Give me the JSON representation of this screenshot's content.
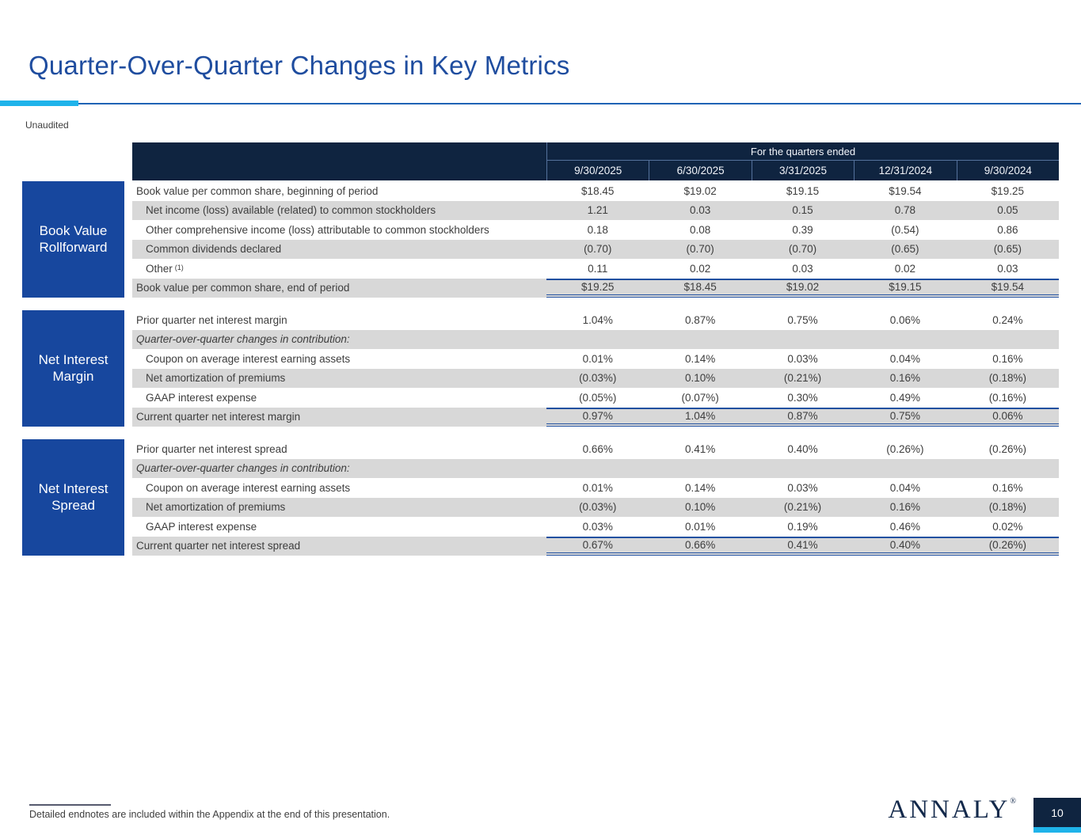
{
  "slide": {
    "title": "Quarter-Over-Quarter Changes in Key Metrics",
    "unaudited_label": "Unaudited",
    "footnote": "Detailed endnotes are included within the Appendix at the end of this presentation.",
    "brand": "ANNALY",
    "brand_mark": "®",
    "page_number": "10"
  },
  "colors": {
    "header_navy": "#0f2440",
    "section_blue": "#17479e",
    "accent_cyan": "#1fb3ea",
    "title_blue": "#1f4d9f",
    "striped_row_gray": "#d8d8d8",
    "total_rule_blue": "#2050a0"
  },
  "table": {
    "quarters_header": "For the quarters ended",
    "columns": [
      "9/30/2025",
      "6/30/2025",
      "3/31/2025",
      "12/31/2024",
      "9/30/2024"
    ],
    "sections": [
      {
        "label": "Book Value Rollforward",
        "rows": [
          {
            "label": "Book value per common share, beginning of period",
            "values": [
              "$18.45",
              "$19.02",
              "$19.15",
              "$19.54",
              "$19.25"
            ]
          },
          {
            "label": "Net income (loss) available (related) to common stockholders",
            "indent": true,
            "values": [
              "1.21",
              "0.03",
              "0.15",
              "0.78",
              "0.05"
            ]
          },
          {
            "label": "Other comprehensive income (loss) attributable to common stockholders",
            "indent": true,
            "values": [
              "0.18",
              "0.08",
              "0.39",
              "(0.54)",
              "0.86"
            ]
          },
          {
            "label": "Common dividends declared",
            "indent": true,
            "values": [
              "(0.70)",
              "(0.70)",
              "(0.70)",
              "(0.65)",
              "(0.65)"
            ]
          },
          {
            "label": "Other",
            "sup": "(1)",
            "indent": true,
            "values": [
              "0.11",
              "0.02",
              "0.03",
              "0.02",
              "0.03"
            ]
          },
          {
            "label": "Book value per common share, end of period",
            "total": true,
            "values": [
              "$19.25",
              "$18.45",
              "$19.02",
              "$19.15",
              "$19.54"
            ]
          }
        ]
      },
      {
        "label": "Net Interest Margin",
        "rows": [
          {
            "label": "Prior quarter net interest margin",
            "values": [
              "1.04%",
              "0.87%",
              "0.75%",
              "0.06%",
              "0.24%"
            ]
          },
          {
            "label": "Quarter-over-quarter changes in contribution:",
            "italic": true,
            "values": [
              "",
              "",
              "",
              "",
              ""
            ]
          },
          {
            "label": "Coupon on average interest earning assets",
            "indent": true,
            "values": [
              "0.01%",
              "0.14%",
              "0.03%",
              "0.04%",
              "0.16%"
            ]
          },
          {
            "label": "Net amortization of premiums",
            "indent": true,
            "values": [
              "(0.03%)",
              "0.10%",
              "(0.21%)",
              "0.16%",
              "(0.18%)"
            ]
          },
          {
            "label": "GAAP interest expense",
            "indent": true,
            "values": [
              "(0.05%)",
              "(0.07%)",
              "0.30%",
              "0.49%",
              "(0.16%)"
            ]
          },
          {
            "label": "Current quarter net interest margin",
            "total": true,
            "values": [
              "0.97%",
              "1.04%",
              "0.87%",
              "0.75%",
              "0.06%"
            ]
          }
        ]
      },
      {
        "label": "Net Interest Spread",
        "rows": [
          {
            "label": "Prior quarter net interest spread",
            "values": [
              "0.66%",
              "0.41%",
              "0.40%",
              "(0.26%)",
              "(0.26%)"
            ]
          },
          {
            "label": "Quarter-over-quarter changes in contribution:",
            "italic": true,
            "values": [
              "",
              "",
              "",
              "",
              ""
            ]
          },
          {
            "label": "Coupon on average interest earning assets",
            "indent": true,
            "values": [
              "0.01%",
              "0.14%",
              "0.03%",
              "0.04%",
              "0.16%"
            ]
          },
          {
            "label": "Net amortization of premiums",
            "indent": true,
            "values": [
              "(0.03%)",
              "0.10%",
              "(0.21%)",
              "0.16%",
              "(0.18%)"
            ]
          },
          {
            "label": "GAAP interest expense",
            "indent": true,
            "values": [
              "0.03%",
              "0.01%",
              "0.19%",
              "0.46%",
              "0.02%"
            ]
          },
          {
            "label": "Current quarter net interest spread",
            "total": true,
            "values": [
              "0.67%",
              "0.66%",
              "0.41%",
              "0.40%",
              "(0.26%)"
            ]
          }
        ]
      }
    ]
  }
}
